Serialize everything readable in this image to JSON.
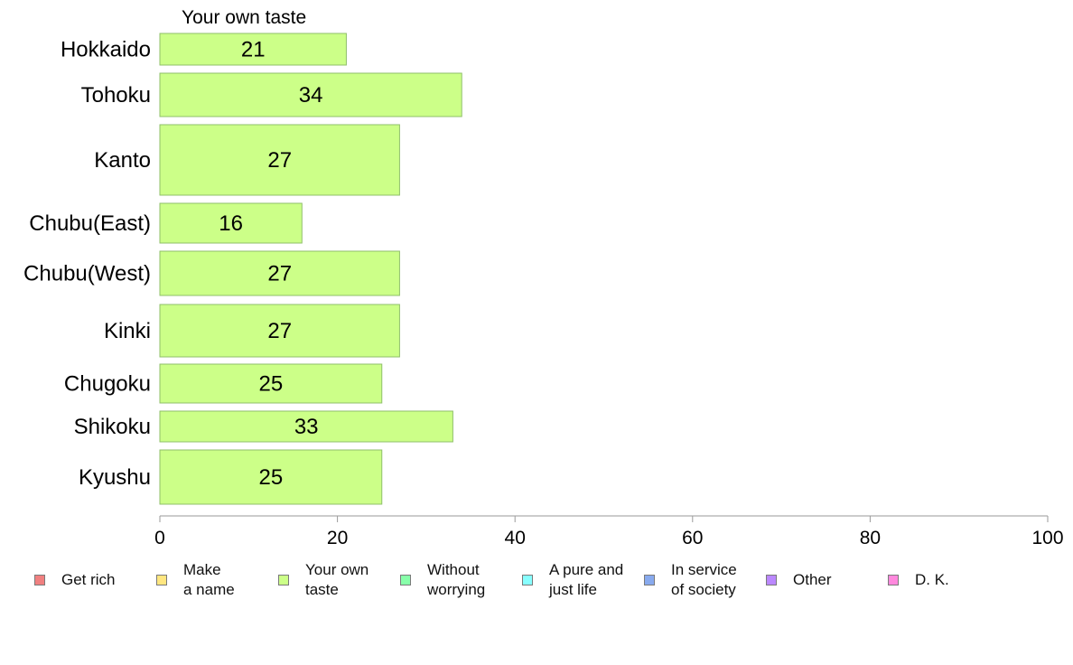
{
  "chart_data": {
    "type": "bar",
    "orientation": "horizontal",
    "title": "Your own taste",
    "categories": [
      "Hokkaido",
      "Tohoku",
      "Kanto",
      "Chubu(East)",
      "Chubu(West)",
      "Kinki",
      "Chugoku",
      "Shikoku",
      "Kyushu"
    ],
    "values": [
      21,
      34,
      27,
      16,
      27,
      27,
      25,
      33,
      25
    ],
    "data_labels": [
      "21",
      "34",
      "27",
      "16",
      "27",
      "27",
      "25",
      "33",
      "25"
    ],
    "xlim": [
      0,
      100
    ],
    "xticks": [
      "0",
      "20",
      "40",
      "60",
      "80",
      "100"
    ],
    "grid": false,
    "bar_color": "#ccff88",
    "bar_border_color": "#8fbf6a",
    "legend": {
      "placement": "bottom",
      "items": [
        {
          "label": "Get rich",
          "color": "#f08080"
        },
        {
          "label": "Make\na name",
          "color": "#ffe680"
        },
        {
          "label": "Your own\ntaste",
          "color": "#ccff88"
        },
        {
          "label": "Without\nworrying",
          "color": "#88ffaa"
        },
        {
          "label": "A pure and\njust life",
          "color": "#88ffff"
        },
        {
          "label": "In service\nof society",
          "color": "#88aaee"
        },
        {
          "label": "Other",
          "color": "#bb88ff"
        },
        {
          "label": "D. K.",
          "color": "#ff88dd"
        }
      ]
    }
  }
}
